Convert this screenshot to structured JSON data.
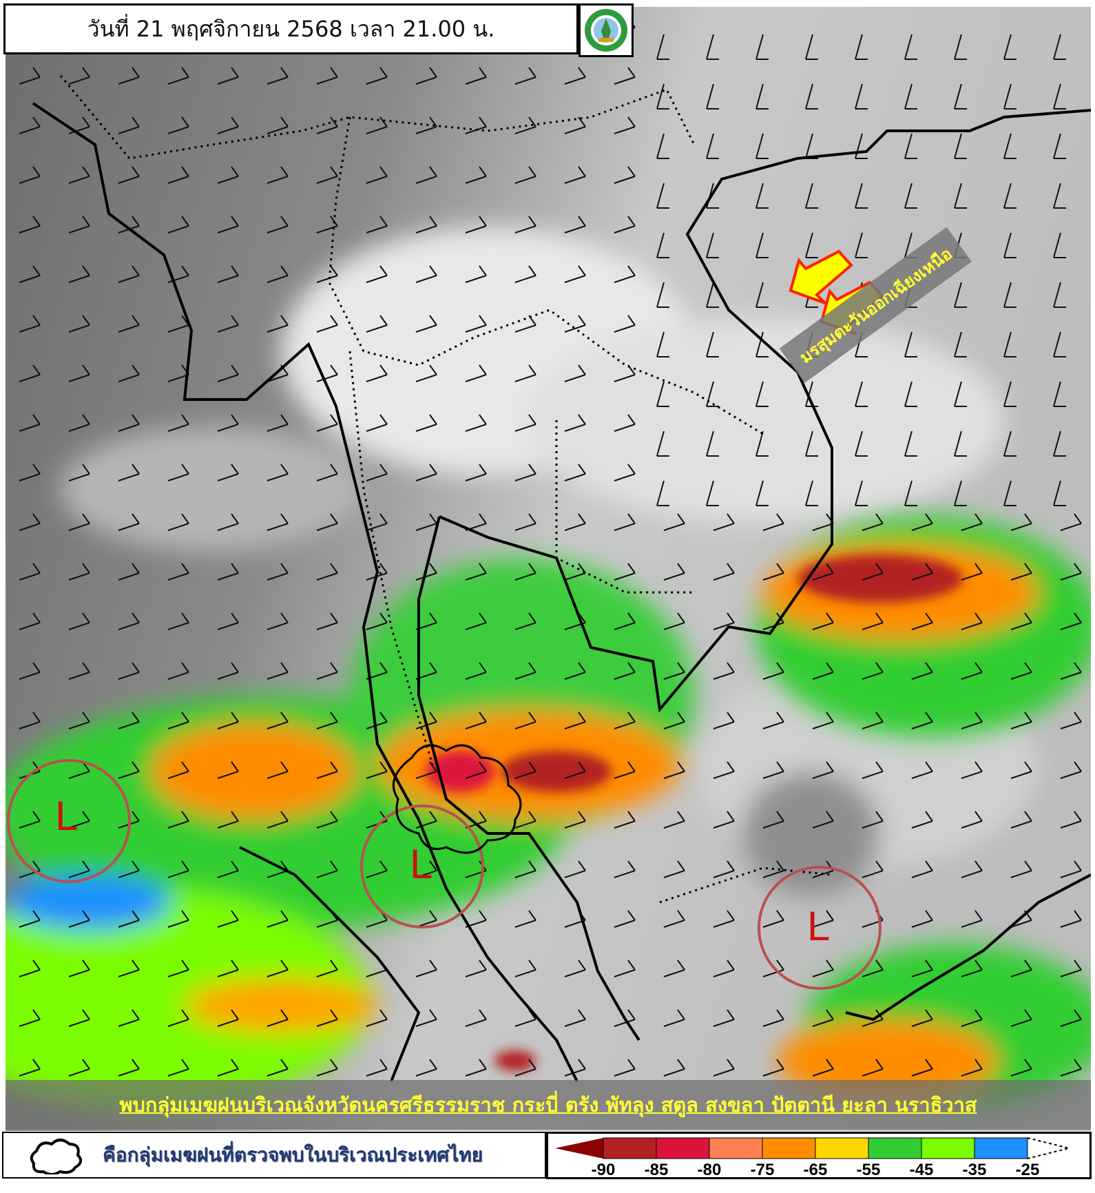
{
  "header": {
    "title": "วันที่ 21 พฤศจิกายน 2568 เวลา 21.00 น.",
    "logo": "กรมอุตุนิยมวิทยา METEOROLOGICAL DEPARTMENT"
  },
  "map": {
    "annotation_monsoon": "มรสุมตะวันออกเฉียงเหนือ",
    "low_pressure_label": "L",
    "low_pressure_count": 3,
    "arrow_color": "#ffff00",
    "arrow_outline": "#ff2000"
  },
  "banner": {
    "text": "พบกลุ่มเมฆฝนบริเวณจังหวัดนครศรีธรรมราช กระบี่ ตรัง พัทลุง สตูล สงขลา ปัตตานี ยะลา นราธิวาส"
  },
  "legend": {
    "cloud_label": "คือกลุ่มเมฆฝนที่ตรวจพบในบริเวณประเทศไทย",
    "scale": [
      {
        "label": "-90",
        "color": "#8b0000"
      },
      {
        "label": "-85",
        "color": "#b22222"
      },
      {
        "label": "-80",
        "color": "#dc143c"
      },
      {
        "label": "-75",
        "color": "#ff7f50"
      },
      {
        "label": "-65",
        "color": "#ff8c00"
      },
      {
        "label": "-55",
        "color": "#ffd700"
      },
      {
        "label": "-45",
        "color": "#32cd32"
      },
      {
        "label": "-35",
        "color": "#7cfc00"
      },
      {
        "label": "-25",
        "color": "#1e90ff"
      }
    ]
  }
}
